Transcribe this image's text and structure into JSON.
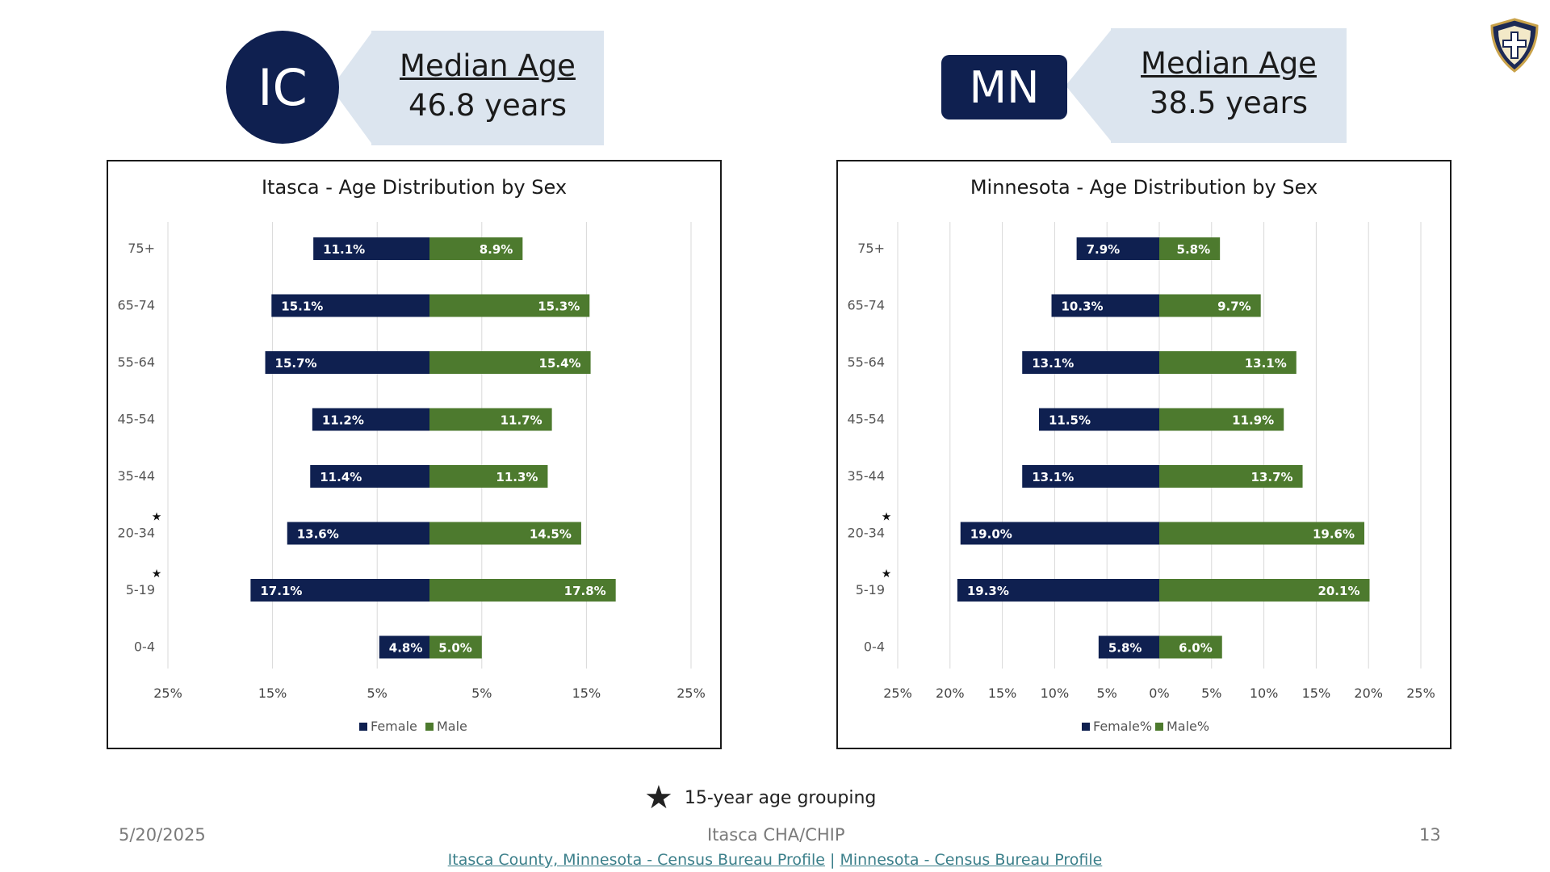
{
  "header": {
    "left_badge": "IC",
    "right_badge": "MN",
    "left_callout": {
      "label": "Median Age",
      "value": "46.8 years"
    },
    "right_callout": {
      "label": "Median Age",
      "value": "38.5 years"
    },
    "logo_icon": "shield-cross-icon"
  },
  "colors": {
    "female": "#0f2050",
    "male": "#4d7a2e",
    "badge": "#0f2050",
    "callout": "#dce5ef",
    "link": "#3b7f8a"
  },
  "chart_data": [
    {
      "type": "bar",
      "orientation": "horizontal-butterfly",
      "title": "Itasca - Age Distribution by Sex",
      "categories": [
        "75+",
        "65-74",
        "55-64",
        "45-54",
        "35-44",
        "20-34",
        "5-19",
        "0-4"
      ],
      "starred": [
        "20-34",
        "5-19"
      ],
      "series": [
        {
          "name": "Female",
          "values": [
            11.1,
            15.1,
            15.7,
            11.2,
            11.4,
            13.6,
            17.1,
            4.8
          ],
          "labels": [
            "11.1%",
            "15.1%",
            "15.7%",
            "11.2%",
            "11.4%",
            "13.6%",
            "17.1%",
            "4.8%"
          ]
        },
        {
          "name": "Male",
          "values": [
            8.9,
            15.3,
            15.4,
            11.7,
            11.3,
            14.5,
            17.8,
            5.0
          ],
          "labels": [
            "8.9%",
            "15.3%",
            "15.4%",
            "11.7%",
            "11.3%",
            "14.5%",
            "17.8%",
            "5.0%"
          ]
        }
      ],
      "ticks": [
        -25,
        -15,
        -5,
        5,
        15,
        25
      ],
      "tick_labels": [
        "25%",
        "15%",
        "5%",
        "5%",
        "15%",
        "25%"
      ],
      "xlim": [
        -25,
        25
      ],
      "grid": true,
      "legend": "bottom"
    },
    {
      "type": "bar",
      "orientation": "horizontal-butterfly",
      "title": "Minnesota - Age Distribution by Sex",
      "categories": [
        "75+",
        "65-74",
        "55-64",
        "45-54",
        "35-44",
        "20-34",
        "5-19",
        "0-4"
      ],
      "starred": [
        "20-34",
        "5-19"
      ],
      "series": [
        {
          "name": "Female%",
          "values": [
            7.9,
            10.3,
            13.1,
            11.5,
            13.1,
            19.0,
            19.3,
            5.8
          ],
          "labels": [
            "7.9%",
            "10.3%",
            "13.1%",
            "11.5%",
            "13.1%",
            "19.0%",
            "19.3%",
            "5.8%"
          ]
        },
        {
          "name": "Male%",
          "values": [
            5.8,
            9.7,
            13.1,
            11.9,
            13.7,
            19.6,
            20.1,
            6.0
          ],
          "labels": [
            "5.8%",
            "9.7%",
            "13.1%",
            "11.9%",
            "13.7%",
            "19.6%",
            "20.1%",
            "6.0%"
          ]
        }
      ],
      "ticks": [
        -25,
        -20,
        -15,
        -10,
        -5,
        0,
        5,
        10,
        15,
        20,
        25
      ],
      "tick_labels": [
        "25%",
        "20%",
        "15%",
        "10%",
        "5%",
        "0%",
        "5%",
        "10%",
        "15%",
        "20%",
        "25%"
      ],
      "xlim": [
        -25,
        25
      ],
      "grid": true,
      "legend": "bottom"
    }
  ],
  "footnote": {
    "symbol": "★",
    "text": "15-year age grouping"
  },
  "footer": {
    "date": "5/20/2025",
    "title": "Itasca CHA/CHIP",
    "page": "13",
    "source_link_1": "Itasca County, Minnesota - Census Bureau Profile",
    "separator": " | ",
    "source_link_2": "Minnesota - Census Bureau Profile"
  }
}
